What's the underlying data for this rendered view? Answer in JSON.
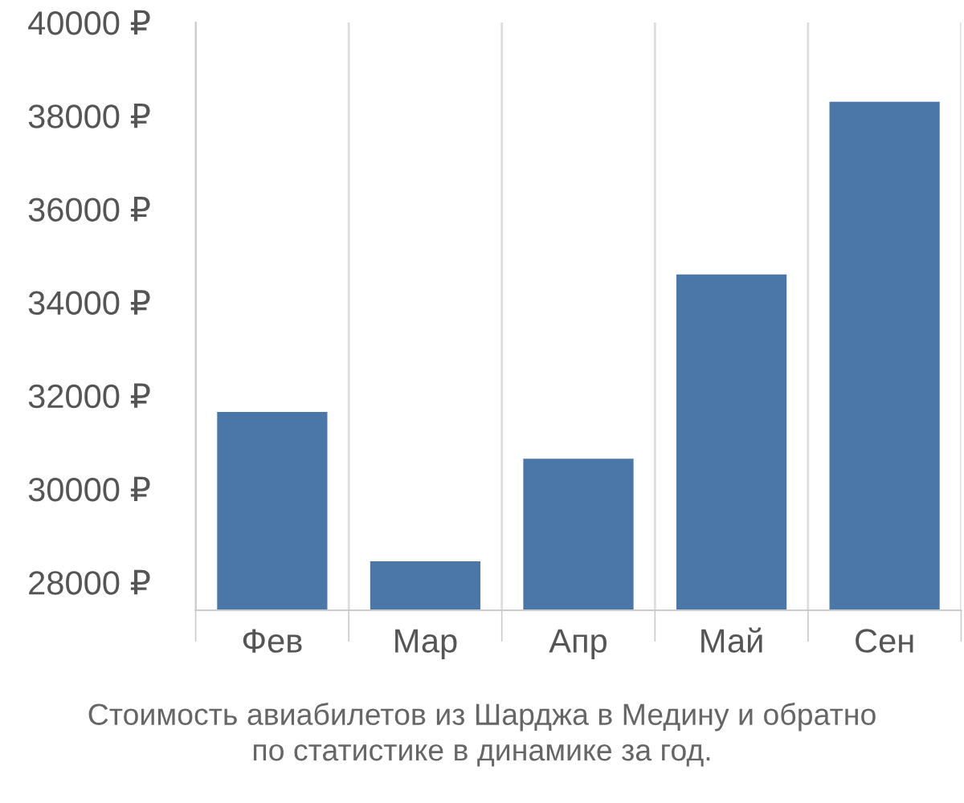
{
  "chart_data": {
    "type": "bar",
    "categories": [
      "Фев",
      "Мар",
      "Апр",
      "Май",
      "Сен"
    ],
    "values": [
      31650,
      28450,
      30650,
      34600,
      38300
    ],
    "color": "#4a77a8",
    "ylim": [
      27400,
      40000
    ],
    "yticks": [
      {
        "value": 28000,
        "label": "28000 ₽"
      },
      {
        "value": 30000,
        "label": "30000 ₽"
      },
      {
        "value": 32000,
        "label": "32000 ₽"
      },
      {
        "value": 34000,
        "label": "34000 ₽"
      },
      {
        "value": 36000,
        "label": "36000 ₽"
      },
      {
        "value": 38000,
        "label": "38000 ₽"
      },
      {
        "value": 40000,
        "label": "40000 ₽"
      }
    ],
    "grid": "x",
    "annotations": [
      "Стоимость авиабилетов из Шарджа в Медину и обратно\nпо статистике в динамике за год."
    ]
  }
}
